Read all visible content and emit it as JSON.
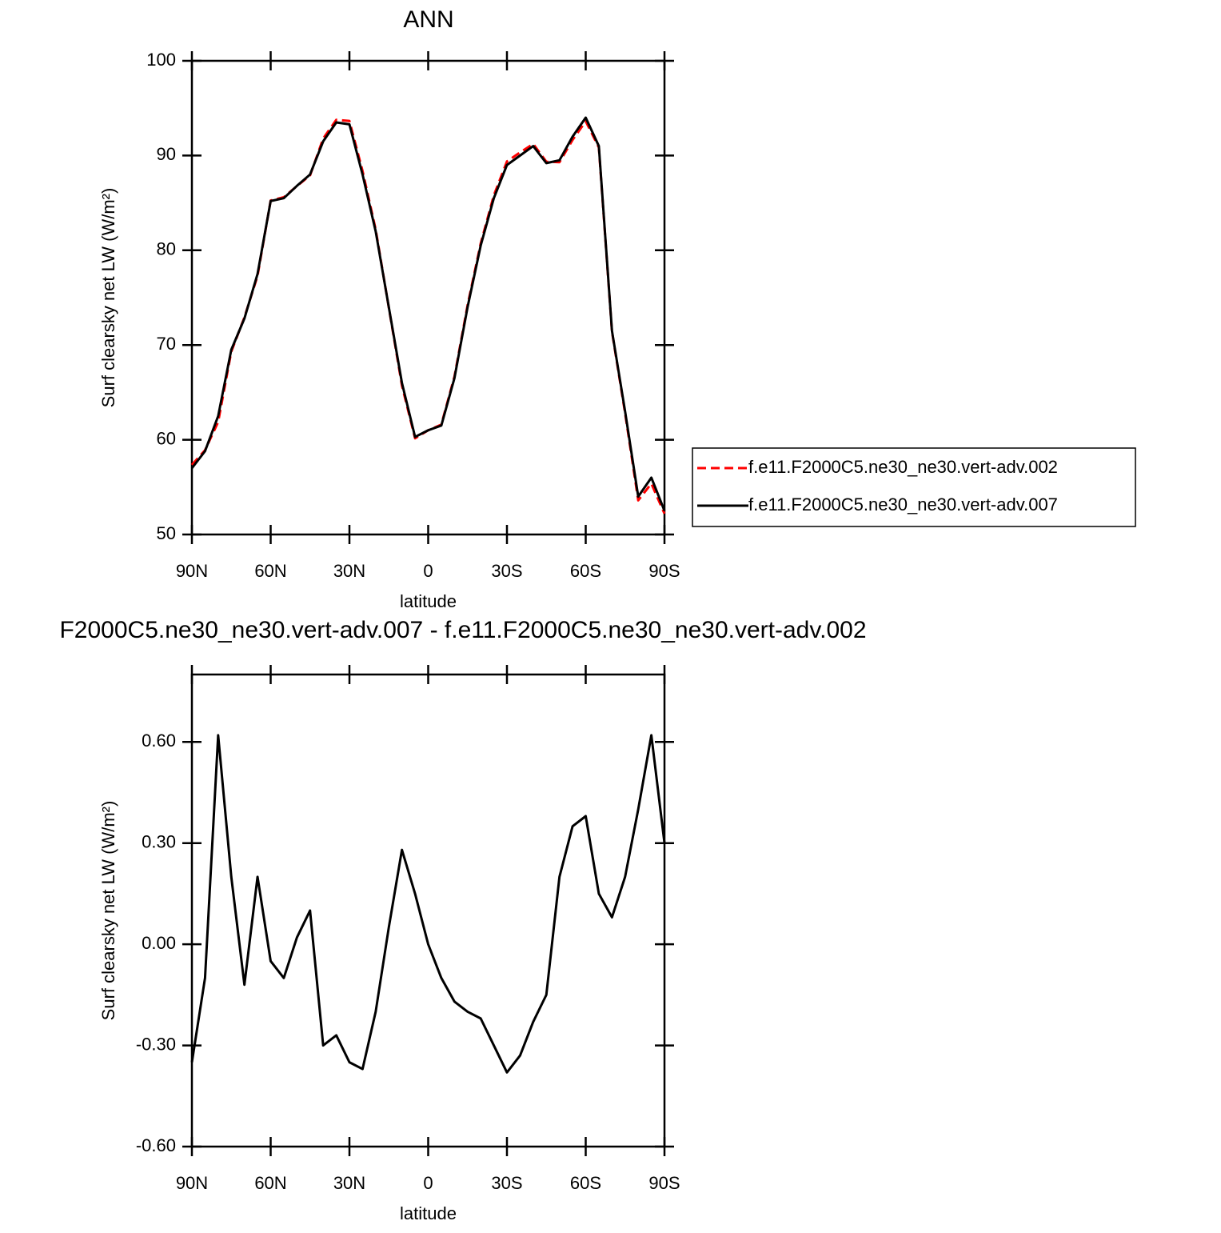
{
  "chart_data": [
    {
      "type": "line",
      "title": "ANN",
      "x_label": "latitude",
      "y_label": "Surf clearsky net LW (W/m²)",
      "x": [
        90,
        85,
        80,
        75,
        70,
        65,
        60,
        55,
        50,
        45,
        40,
        35,
        30,
        25,
        20,
        15,
        10,
        5,
        0,
        -5,
        -10,
        -15,
        -20,
        -25,
        -30,
        -35,
        -40,
        -45,
        -50,
        -55,
        -60,
        -65,
        -70,
        -75,
        -80,
        -85,
        -90
      ],
      "xlim": [
        90,
        -90
      ],
      "xticks": [
        {
          "value": 90,
          "label": "90N"
        },
        {
          "value": 60,
          "label": "60N"
        },
        {
          "value": 30,
          "label": "30N"
        },
        0,
        {
          "value": -30,
          "label": "30S"
        },
        {
          "value": -60,
          "label": "60S"
        },
        {
          "value": -90,
          "label": "90S"
        }
      ],
      "ylim": [
        50,
        100
      ],
      "yticks": [
        50,
        60,
        70,
        80,
        90,
        100
      ],
      "legend": "right",
      "series": [
        {
          "name": "f.e11.F2000C5.ne30_ne30.vert-adv.002",
          "color": "#ff0000",
          "linestyle": "dashed",
          "values": [
            57.35,
            58.9,
            61.88,
            69.3,
            72.92,
            77.3,
            85.25,
            85.6,
            86.78,
            87.9,
            91.8,
            93.77,
            93.65,
            88.37,
            82.2,
            73.95,
            65.72,
            60.15,
            61,
            61.6,
            66.67,
            74.2,
            80.72,
            85.8,
            89.38,
            90.33,
            91.23,
            89.35,
            89.3,
            91.65,
            93.62,
            90.85,
            71.42,
            62.8,
            53.6,
            55.38,
            52.2
          ]
        },
        {
          "name": "f.e11.F2000C5.ne30_ne30.vert-adv.007",
          "color": "#000000",
          "linestyle": "solid",
          "values": [
            57,
            58.8,
            62.5,
            69.5,
            72.8,
            77.5,
            85.2,
            85.5,
            86.8,
            88,
            91.5,
            93.5,
            93.3,
            88,
            82,
            74,
            66,
            60.3,
            61,
            61.5,
            66.5,
            74,
            80.5,
            85.5,
            89,
            90,
            91,
            89.2,
            89.5,
            92,
            94,
            91,
            71.5,
            63,
            54,
            56,
            52.5
          ]
        }
      ]
    },
    {
      "type": "line",
      "title": "F2000C5.ne30_ne30.vert-adv.007 - f.e11.F2000C5.ne30_ne30.vert-adv.002",
      "x_label": "latitude",
      "y_label": "Surf clearsky net LW (W/m²)",
      "x": [
        90,
        85,
        80,
        75,
        70,
        65,
        60,
        55,
        50,
        45,
        40,
        35,
        30,
        25,
        20,
        15,
        10,
        5,
        0,
        -5,
        -10,
        -15,
        -20,
        -25,
        -30,
        -35,
        -40,
        -45,
        -50,
        -55,
        -60,
        -65,
        -70,
        -75,
        -80,
        -85,
        -90
      ],
      "xlim": [
        90,
        -90
      ],
      "xticks": [
        {
          "value": 90,
          "label": "90N"
        },
        {
          "value": 60,
          "label": "60N"
        },
        {
          "value": 30,
          "label": "30N"
        },
        0,
        {
          "value": -30,
          "label": "30S"
        },
        {
          "value": -60,
          "label": "60S"
        },
        {
          "value": -90,
          "label": "90S"
        }
      ],
      "ylim": [
        -0.6,
        0.8
      ],
      "yticks": [
        {
          "value": -0.6,
          "label": "-0.60"
        },
        {
          "value": -0.3,
          "label": "-0.30"
        },
        {
          "value": 0,
          "label": "0.00"
        },
        {
          "value": 0.3,
          "label": "0.30"
        },
        {
          "value": 0.6,
          "label": "0.60"
        }
      ],
      "color": "#000000",
      "values": [
        -0.35,
        -0.1,
        0.62,
        0.2,
        -0.12,
        0.2,
        -0.05,
        -0.1,
        0.02,
        0.1,
        -0.3,
        -0.27,
        -0.35,
        -0.37,
        -0.2,
        0.05,
        0.28,
        0.15,
        0.0,
        -0.1,
        -0.17,
        -0.2,
        -0.22,
        -0.3,
        -0.38,
        -0.33,
        -0.23,
        -0.15,
        0.2,
        0.35,
        0.38,
        0.15,
        0.08,
        0.2,
        0.4,
        0.62,
        0.3
      ]
    }
  ]
}
